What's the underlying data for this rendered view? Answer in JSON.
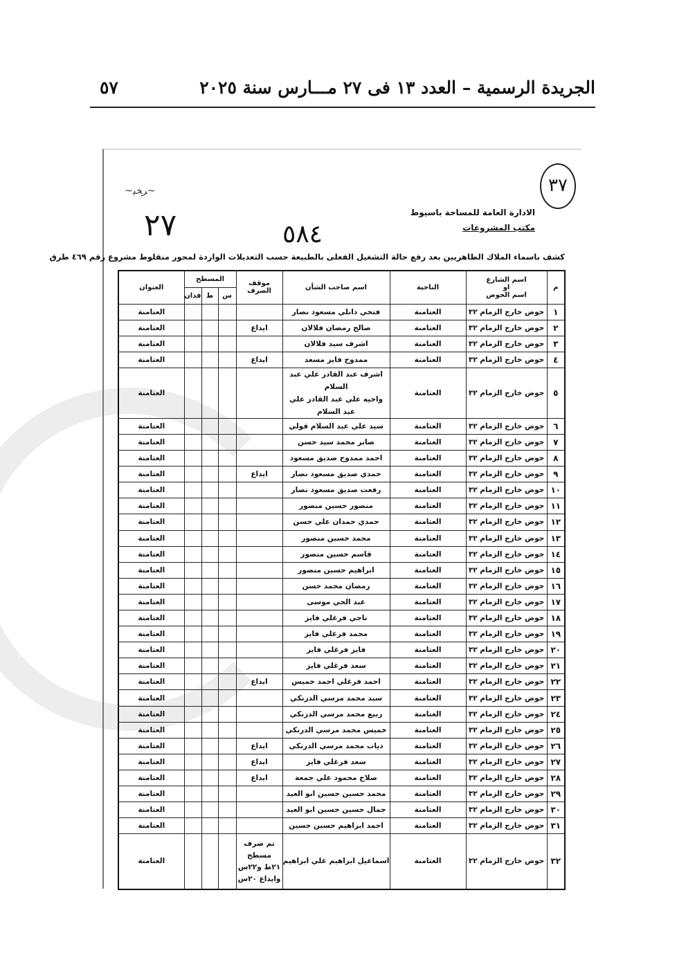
{
  "header": {
    "title": "الجريدة الرسمية – العدد ١٣ فى ٢٧ مـــارس سنة ٢٠٢٥",
    "page_number": "٥٧"
  },
  "document": {
    "circled_number": "٣٧",
    "org_line1": "الادارة العامة للمساحة باسيوط",
    "org_line2": "مكتب المشروعات",
    "handwritten_left": "٢٧",
    "handwritten_center": "٥٨٤",
    "caption": "كشف باسماء الملاك الظاهريين بعد رفع حالة التشغيل الفعلى بالطبيعة حسب التعديلات الواردة لمحور منقلوط مشروع رقم ٤٦٩ طرق"
  },
  "table": {
    "headers": {
      "index": "م",
      "street_top": "اسم الشارع",
      "street_mid": "او",
      "street_bottom": "اسم الحوض",
      "district": "الناحية",
      "owner": "اسم صاحب الشأن",
      "disbursement": "موقف الصرف",
      "area": "المسطح",
      "area_sahm": "س",
      "area_qirat": "ط",
      "area_feddan": "فدان",
      "address": "العنوان"
    },
    "rows": [
      {
        "n": "١",
        "street": "حوض خارج الزمام ٣٢",
        "district": "العتامنة",
        "owner": "فتحي دانلي مسعود نصار",
        "status": "",
        "address": "العتامنة"
      },
      {
        "n": "٢",
        "street": "حوض خارج الزمام ٣٢",
        "district": "العتامنة",
        "owner": "صالح رمضان فلالان",
        "status": "ايداع",
        "address": "العتامنة"
      },
      {
        "n": "٣",
        "street": "حوض خارج الزمام ٣٢",
        "district": "العتامنة",
        "owner": "اشرف سيد فلالان",
        "status": "",
        "address": "العتامنة"
      },
      {
        "n": "٤",
        "street": "حوض خارج الزمام ٣٢",
        "district": "العتامنة",
        "owner": "ممدوح فايز مسعد",
        "status": "ايداع",
        "address": "العتامنة"
      },
      {
        "n": "٥",
        "street": "حوض خارج الزمام ٣٢",
        "district": "العتامنة",
        "owner": "اشرف عبد القادر علي عبد السلام",
        "owner2": "واخيه علي عبد القادر علي عبد السلام",
        "status": "",
        "address": "العتامنة"
      },
      {
        "n": "٦",
        "street": "حوض خارج الزمام ٣٢",
        "district": "العتامنة",
        "owner": "سيد علي عبد السلام قولي",
        "status": "",
        "address": "العتامنة"
      },
      {
        "n": "٧",
        "street": "حوض خارج الزمام ٣٢",
        "district": "العتامنة",
        "owner": "صابر محمد سيد حسن",
        "status": "",
        "address": "العتامنة"
      },
      {
        "n": "٨",
        "street": "حوض خارج الزمام ٣٢",
        "district": "العتامنة",
        "owner": "احمد ممدوح صديق مسعود",
        "status": "",
        "address": "العتامنة"
      },
      {
        "n": "٩",
        "street": "حوض خارج الزمام ٣٢",
        "district": "العتامنة",
        "owner": "حمدي صديق مسعود نصار",
        "status": "ايداع",
        "address": "العتامنة"
      },
      {
        "n": "١٠",
        "street": "حوض خارج الزمام ٣٢",
        "district": "العتامنة",
        "owner": "رفعت صديق مسعود نصار",
        "status": "",
        "address": "العتامنة"
      },
      {
        "n": "١١",
        "street": "حوض خارج الزمام ٣٢",
        "district": "العتامنة",
        "owner": "منصور حسين منصور",
        "status": "",
        "address": "العتامنة"
      },
      {
        "n": "١٢",
        "street": "حوض خارج الزمام ٣٢",
        "district": "العتامنة",
        "owner": "حمدي حمدان علي حسن",
        "status": "",
        "address": "العتامنة"
      },
      {
        "n": "١٣",
        "street": "حوض خارج الزمام ٣٢",
        "district": "العتامنة",
        "owner": "محمد حسين منصور",
        "status": "",
        "address": "العتامنة"
      },
      {
        "n": "١٤",
        "street": "حوض خارج الزمام ٣٢",
        "district": "العتامنة",
        "owner": "قاسم حسين منصور",
        "status": "",
        "address": "العتامنة"
      },
      {
        "n": "١٥",
        "street": "حوض خارج الزمام ٣٢",
        "district": "العتامنة",
        "owner": "ابراهيم حسين منصور",
        "status": "",
        "address": "العتامنة"
      },
      {
        "n": "١٦",
        "street": "حوض خارج الزمام ٣٢",
        "district": "العتامنة",
        "owner": "رمضان محمد حسن",
        "status": "",
        "address": "العتامنة"
      },
      {
        "n": "١٧",
        "street": "حوض خارج الزمام ٣٢",
        "district": "العتامنة",
        "owner": "عبد الحي موسى",
        "status": "",
        "address": "العتامنة"
      },
      {
        "n": "١٨",
        "street": "حوض خارج الزمام ٣٢",
        "district": "العتامنة",
        "owner": "ناجي فرغلي فايز",
        "status": "",
        "address": "العتامنة"
      },
      {
        "n": "١٩",
        "street": "حوض خارج الزمام ٣٢",
        "district": "العتامنة",
        "owner": "محمد فرغلي فايز",
        "status": "",
        "address": "العتامنة"
      },
      {
        "n": "٢٠",
        "street": "حوض خارج الزمام ٣٢",
        "district": "العتامنة",
        "owner": "فايز فرغلي فايز",
        "status": "",
        "address": "العتامنة"
      },
      {
        "n": "٢١",
        "street": "حوض خارج الزمام ٣٢",
        "district": "العتامنة",
        "owner": "سعد فرغلي فايز",
        "status": "",
        "address": "العتامنة"
      },
      {
        "n": "٢٢",
        "street": "حوض خارج الزمام ٣٢",
        "district": "العتامنة",
        "owner": "احمد فرغلي احمد خميس",
        "status": "ايداع",
        "address": "العتامنة"
      },
      {
        "n": "٢٣",
        "street": "حوض خارج الزمام ٣٢",
        "district": "العتامنة",
        "owner": "سيد محمد مرسي الدرنكي",
        "status": "",
        "address": "العتامنة"
      },
      {
        "n": "٢٤",
        "street": "حوض خارج الزمام ٣٢",
        "district": "العتامنة",
        "owner": "ربيع محمد مرسي الدرنكي",
        "status": "",
        "address": "العتامنة"
      },
      {
        "n": "٢٥",
        "street": "حوض خارج الزمام ٣٢",
        "district": "العتامنة",
        "owner": "خميس محمد مرسي الدرنكي",
        "status": "",
        "address": "العتامنة"
      },
      {
        "n": "٢٦",
        "street": "حوض خارج الزمام ٣٢",
        "district": "العتامنة",
        "owner": "دياب محمد مرسي الدرنكي",
        "status": "ايداع",
        "address": "العتامنة"
      },
      {
        "n": "٢٧",
        "street": "حوض خارج الزمام ٣٢",
        "district": "العتامنة",
        "owner": "سعد فرغلي فايز",
        "status": "ايداع",
        "address": "العتامنة"
      },
      {
        "n": "٢٨",
        "street": "حوض خارج الزمام ٣٢",
        "district": "العتامنة",
        "owner": "صلاح محمود علي جمعة",
        "status": "ايداع",
        "address": "العتامنة"
      },
      {
        "n": "٢٩",
        "street": "حوض خارج الزمام ٣٢",
        "district": "العتامنة",
        "owner": "محمد حسين حسين ابو العيد",
        "status": "",
        "address": "العتامنة"
      },
      {
        "n": "٣٠",
        "street": "حوض خارج الزمام ٣٢",
        "district": "العتامنة",
        "owner": "جمال حسين حسين ابو العيد",
        "status": "",
        "address": "العتامنة"
      },
      {
        "n": "٣١",
        "street": "حوض خارج الزمام ٣٢",
        "district": "العتامنة",
        "owner": "احمد ابراهيم حسين حسين",
        "status": "",
        "address": "العتامنة"
      },
      {
        "n": "٣٢",
        "street": "حوض خارج الزمام ٣٢",
        "district": "العتامنة",
        "owner": "اسماعيل ابراهيم علي ابراهيم",
        "status": "تم صرف مسطح",
        "status2": "٢١ط و٢٢س",
        "status3": "وايداع ٢٠س",
        "address": "العتامنة"
      }
    ]
  }
}
